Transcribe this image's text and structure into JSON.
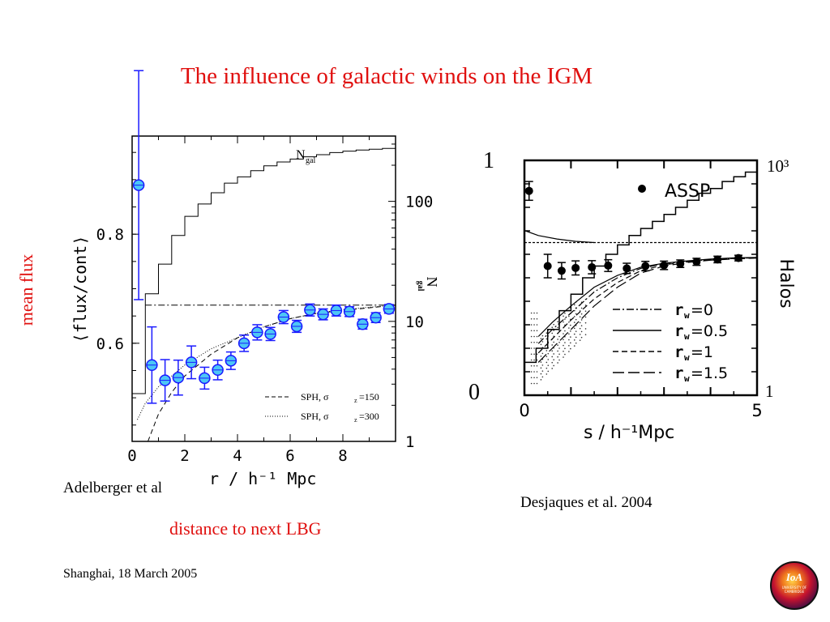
{
  "slide": {
    "title": "The influence of galactic winds on the IGM",
    "ylabel": "mean flux",
    "xlabel": "distance to next LBG",
    "left_credit": "Adelberger et al",
    "right_credit": "Desjaques et al. 2004",
    "footer": "Shanghai, 18 March  2005",
    "right_yaxis_one": "1",
    "right_yaxis_zero": "0",
    "logo_text": "IoA",
    "logo_subtext": "UNIVERSITY OF CAMBRIDGE"
  },
  "chart_data": [
    {
      "type": "scatter",
      "xlabel": "r / h⁻¹ Mpc",
      "ylabel": "⟨flux/cont⟩",
      "y2label": "N",
      "y2label_sub": "gal",
      "xlim": [
        0,
        10
      ],
      "ylim": [
        0.42,
        0.98
      ],
      "y2lim_log": [
        1,
        350
      ],
      "xticks": [
        0,
        2,
        4,
        6,
        8
      ],
      "xtick_labels": [
        "0",
        "2",
        "4",
        "6",
        "8"
      ],
      "yticks": [
        0.6,
        0.8
      ],
      "ytick_labels": [
        "0.6",
        "0.8"
      ],
      "y2ticks": [
        1,
        10,
        100
      ],
      "y2tick_labels": [
        "1",
        "10",
        "100"
      ],
      "points": {
        "x": [
          0.25,
          0.75,
          1.25,
          1.75,
          2.25,
          2.75,
          3.25,
          3.75,
          4.25,
          4.75,
          5.25,
          5.75,
          6.25,
          6.75,
          7.25,
          7.75,
          8.25,
          8.75,
          9.25,
          9.75
        ],
        "y": [
          0.89,
          0.56,
          0.532,
          0.537,
          0.565,
          0.536,
          0.551,
          0.568,
          0.6,
          0.62,
          0.617,
          0.648,
          0.631,
          0.661,
          0.653,
          0.66,
          0.658,
          0.635,
          0.647,
          0.663
        ],
        "err": [
          0.21,
          0.07,
          0.038,
          0.032,
          0.03,
          0.02,
          0.018,
          0.016,
          0.015,
          0.014,
          0.012,
          0.012,
          0.011,
          0.011,
          0.01,
          0.01,
          0.009,
          0.009,
          0.009,
          0.008
        ],
        "color": "#4dc6f5",
        "edge": "#1a1aff"
      },
      "ngal_histogram": {
        "label": "N",
        "label_sub": "gal",
        "edges": [
          0,
          0.5,
          1,
          1.5,
          2,
          2.5,
          3,
          3.5,
          4,
          4.5,
          5,
          5.5,
          6,
          6.5,
          7,
          7.5,
          8,
          8.5,
          9,
          9.5,
          10
        ],
        "values": [
          2.5,
          17,
          30,
          52,
          75,
          95,
          118,
          142,
          160,
          180,
          198,
          213,
          225,
          235,
          245,
          255,
          262,
          268,
          272,
          276
        ]
      },
      "dashdot_level": 0.67,
      "legend": [
        {
          "label": "SPH, σ",
          "sub": "z",
          "value": "=150",
          "style": "dashed"
        },
        {
          "label": "SPH, σ",
          "sub": "z",
          "value": "=300",
          "style": "dotted"
        }
      ],
      "legend_position": "bottom-right",
      "model_curves": {
        "sph_150": {
          "x": [
            0.6,
            1,
            1.5,
            2,
            3,
            4,
            5,
            6,
            7,
            8,
            10
          ],
          "y": [
            0.42,
            0.47,
            0.51,
            0.54,
            0.58,
            0.61,
            0.63,
            0.645,
            0.655,
            0.66,
            0.67
          ]
        },
        "sph_300": {
          "x": [
            0.2,
            0.5,
            1,
            1.5,
            2,
            3,
            4,
            5,
            6,
            7,
            8,
            10
          ],
          "y": [
            0.46,
            0.49,
            0.52,
            0.54,
            0.56,
            0.59,
            0.61,
            0.63,
            0.645,
            0.655,
            0.662,
            0.67
          ]
        }
      }
    },
    {
      "type": "line",
      "xlabel": "s / h⁻¹Mpc",
      "y2label": "Halos",
      "xlim": [
        0,
        5
      ],
      "ylim": [
        0,
        1
      ],
      "xtick_labels": [
        "0",
        "5"
      ],
      "y2tick_labels": [
        "10³",
        "1"
      ],
      "assp_label": "ASSP",
      "assp_points": {
        "x": [
          0.1,
          0.5,
          0.8,
          1.1,
          1.45,
          1.8,
          2.2,
          2.6,
          3.0,
          3.35,
          3.7,
          4.15,
          4.6
        ],
        "y": [
          0.87,
          0.55,
          0.53,
          0.542,
          0.545,
          0.552,
          0.54,
          0.55,
          0.553,
          0.56,
          0.568,
          0.578,
          0.584
        ],
        "err": [
          0.04,
          0.05,
          0.035,
          0.03,
          0.028,
          0.025,
          0.022,
          0.02,
          0.018,
          0.016,
          0.015,
          0.014,
          0.012
        ]
      },
      "legend": [
        {
          "label": "r",
          "sub": "w",
          "value": "=0",
          "style": "dash-dot"
        },
        {
          "label": "r",
          "sub": "w",
          "value": "=0.5",
          "style": "solid"
        },
        {
          "label": "r",
          "sub": "w",
          "value": "=1",
          "style": "dashed"
        },
        {
          "label": "r",
          "sub": "w",
          "value": "=1.5",
          "style": "long-dash"
        }
      ],
      "legend_position": "bottom-right",
      "halo_histogram": {
        "edges": [
          0,
          0.25,
          0.5,
          0.75,
          1.0,
          1.25,
          1.5,
          1.75,
          2.0,
          2.25,
          2.5,
          2.75,
          3.0,
          3.25,
          3.5,
          3.75,
          4.0,
          4.25,
          4.5,
          4.75,
          5.0
        ],
        "values": [
          0.14,
          0.2,
          0.28,
          0.36,
          0.43,
          0.5,
          0.55,
          0.6,
          0.64,
          0.68,
          0.71,
          0.74,
          0.77,
          0.8,
          0.83,
          0.86,
          0.88,
          0.91,
          0.93,
          0.95
        ]
      },
      "mean_level": 0.65,
      "model_curves": {
        "rw_0": {
          "x": [
            0.3,
            0.6,
            1,
            1.5,
            2,
            2.5,
            3,
            3.5,
            4,
            4.5,
            5
          ],
          "y": [
            0.22,
            0.28,
            0.35,
            0.44,
            0.5,
            0.54,
            0.56,
            0.57,
            0.578,
            0.583,
            0.585
          ]
        },
        "rw_05": {
          "x": [
            0.3,
            0.6,
            1,
            1.5,
            2,
            2.5,
            3,
            3.5,
            4,
            4.5,
            5
          ],
          "y": [
            0.25,
            0.31,
            0.38,
            0.46,
            0.51,
            0.545,
            0.562,
            0.572,
            0.58,
            0.585,
            0.587
          ]
        },
        "rw_1": {
          "x": [
            0.3,
            0.6,
            1,
            1.5,
            2,
            2.5,
            3,
            3.5,
            4,
            4.5,
            5
          ],
          "y": [
            0.18,
            0.24,
            0.32,
            0.41,
            0.48,
            0.53,
            0.555,
            0.568,
            0.577,
            0.582,
            0.585
          ]
        },
        "rw_15": {
          "x": [
            0.3,
            0.6,
            1,
            1.5,
            2,
            2.5,
            3,
            3.5,
            4,
            4.5,
            5
          ],
          "y": [
            0.14,
            0.2,
            0.28,
            0.38,
            0.46,
            0.52,
            0.55,
            0.565,
            0.575,
            0.58,
            0.584
          ]
        },
        "upper_decline": {
          "x": [
            0.02,
            0.3,
            0.7,
            1.1,
            1.5
          ],
          "y": [
            0.7,
            0.68,
            0.665,
            0.655,
            0.65
          ]
        }
      },
      "shaded_region": {
        "x_from": 0.15,
        "x_to": 1.3
      }
    }
  ]
}
